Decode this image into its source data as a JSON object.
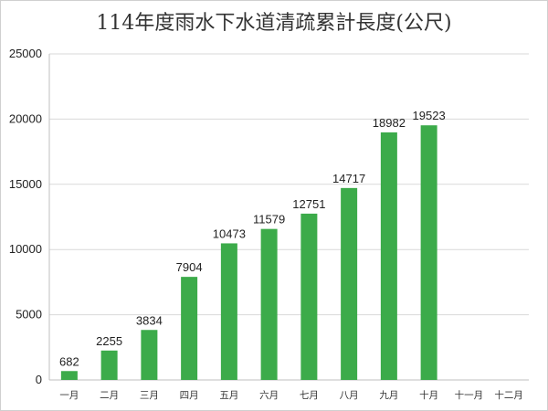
{
  "chart_data": {
    "type": "bar",
    "title": "114年度雨水下水道清疏累計長度(公尺)",
    "xlabel": "",
    "ylabel": "",
    "categories": [
      "一月",
      "二月",
      "三月",
      "四月",
      "五月",
      "六月",
      "七月",
      "八月",
      "九月",
      "十月",
      "十一月",
      "十二月"
    ],
    "values": [
      682,
      2255,
      3834,
      7904,
      10473,
      11579,
      12751,
      14717,
      18982,
      19523,
      null,
      null
    ],
    "value_labels": [
      "682",
      "2255",
      "3834",
      "7904",
      "10473",
      "11579",
      "12751",
      "14717",
      "18982",
      "19523",
      "",
      ""
    ],
    "ylim": [
      0,
      25000
    ],
    "yticks": [
      0,
      5000,
      10000,
      15000,
      20000,
      25000
    ],
    "ytick_labels": [
      "0",
      "5000",
      "10000",
      "15000",
      "20000",
      "25000"
    ],
    "grid": "horizontal",
    "legend": "none",
    "colors": {
      "bar": "#3cab4a",
      "grid": "#d9d9d9",
      "axis": "#bfbfbf"
    }
  }
}
